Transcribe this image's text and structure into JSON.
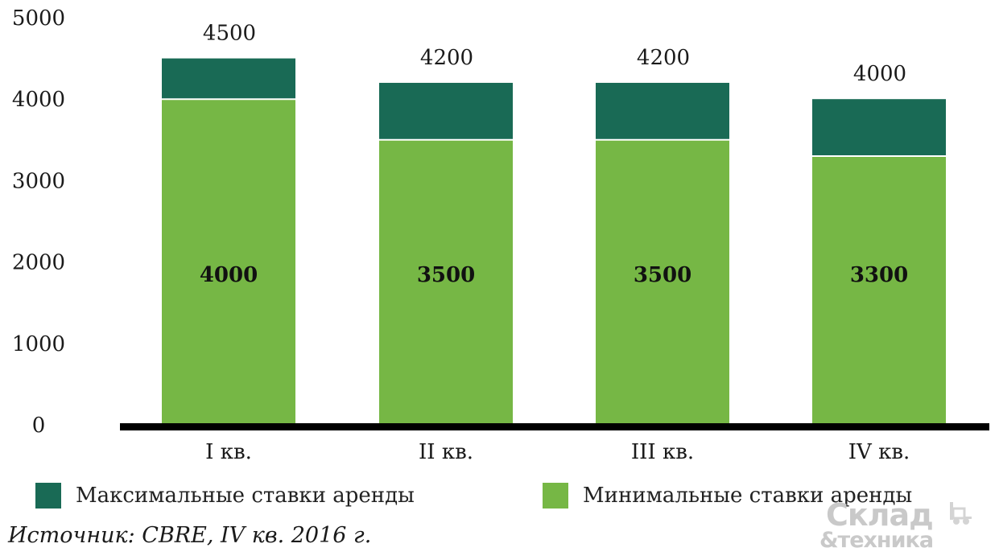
{
  "chart_data": {
    "type": "bar",
    "stacked": true,
    "categories": [
      "I кв.",
      "II кв.",
      "III кв.",
      "IV кв."
    ],
    "series": [
      {
        "name": "Минимальные ставки аренды",
        "values": [
          4000,
          3500,
          3500,
          3300
        ],
        "color": "#76b745"
      },
      {
        "name": "Максимальные ставки аренды",
        "values": [
          500,
          700,
          700,
          700
        ],
        "color": "#196a55"
      }
    ],
    "inner_labels": [
      "4000",
      "3500",
      "3500",
      "3300"
    ],
    "total_labels": [
      "4500",
      "4200",
      "4200",
      "4000"
    ],
    "totals": [
      4500,
      4200,
      4200,
      4000
    ],
    "y_ticks": [
      "0",
      "1000",
      "2000",
      "3000",
      "4000",
      "5000"
    ],
    "ylim": [
      0,
      5000
    ],
    "grid": false,
    "legend_position": "bottom"
  },
  "legend": {
    "max_label": "Максимальные ставки аренды",
    "min_label": "Минимальные ставки аренды"
  },
  "source": "Источник: CBRE, IV кв. 2016 г.",
  "logo": {
    "line1": "Склад",
    "line2": "&техника"
  },
  "colors": {
    "max": "#196a55",
    "min": "#76b745",
    "axis": "#000000"
  }
}
